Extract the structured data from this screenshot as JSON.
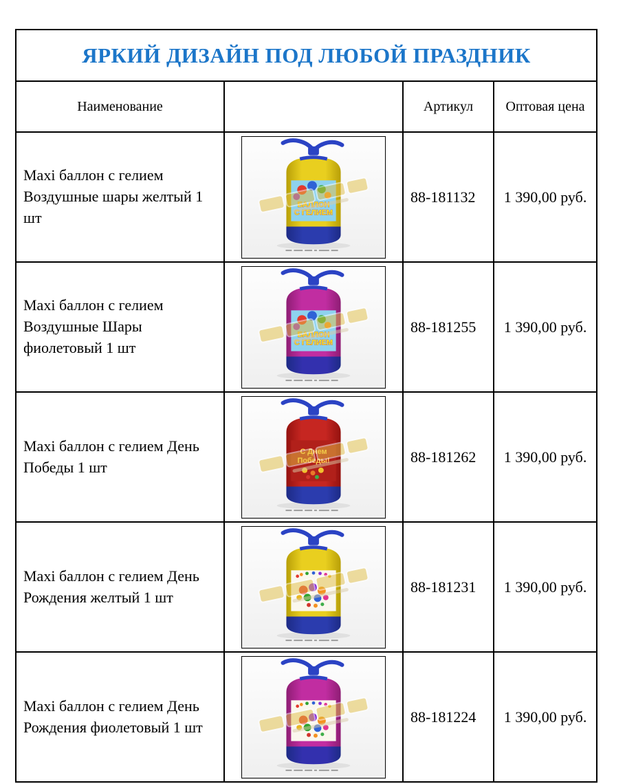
{
  "colors": {
    "title": "#1c76c9",
    "border": "#000000",
    "watermark_gold": "#e2bf45"
  },
  "table": {
    "title": "ЯРКИЙ ДИЗАЙН ПОД ЛЮБОЙ ПРАЗДНИК",
    "headers": {
      "name": "Наименование",
      "image": "",
      "sku": "Артикул",
      "price": "Оптовая цена"
    },
    "products": [
      {
        "name": "Maxi баллон с гелием Воздушные шары желтый 1 шт",
        "sku": "88-181132",
        "price": "1 390,00 руб.",
        "image": {
          "alt": "yellow-helium-tank-balloons-photo",
          "variant": "balloons",
          "body_color": "#e9cf1f",
          "body_edge_color": "#b89f07",
          "bottom_color": "#2b3cae",
          "label_bg": "#8ed2ee",
          "label_lines": [
            "БАЛЛОН",
            "С ГЕЛИЕМ"
          ],
          "label_text_color": "#ffe32a"
        }
      },
      {
        "name": "Maxi баллон с гелием Воздушные Шары фиолетовый 1 шт",
        "sku": "88-181255",
        "price": "1 390,00 руб.",
        "image": {
          "alt": "purple-helium-tank-balloons-photo",
          "variant": "balloons",
          "body_color": "#c12da1",
          "body_edge_color": "#8e1d74",
          "bottom_color": "#3330ae",
          "label_bg": "#8ed2ee",
          "label_lines": [
            "БАЛЛОН",
            "С ГЕЛИЕМ"
          ],
          "label_text_color": "#ffe32a"
        }
      },
      {
        "name": "Maxi баллон с гелием День Победы 1 шт",
        "sku": "88-181262",
        "price": "1 390,00 руб.",
        "image": {
          "alt": "red-helium-tank-victory-day-photo",
          "variant": "victory",
          "body_color": "#c62621",
          "body_edge_color": "#94120f",
          "bottom_color": "#2b3cae",
          "label_bg": "#b1201a",
          "label_lines": [
            "С Днем",
            "Победы!"
          ],
          "label_text_color": "#ffd34d"
        }
      },
      {
        "name": "Maxi баллон с гелием День Рождения желтый 1 шт",
        "sku": "88-181231",
        "price": "1 390,00 руб.",
        "image": {
          "alt": "yellow-helium-tank-birthday-photo",
          "variant": "birthday",
          "body_color": "#e9cf1f",
          "body_edge_color": "#b89f07",
          "bottom_color": "#2b3cae",
          "label_bg": "#faf7ee",
          "label_lines": [],
          "label_text_color": "#d03020"
        }
      },
      {
        "name": "Maxi баллон с гелием День Рождения фиолетовый 1 шт",
        "sku": "88-181224",
        "price": "1 390,00 руб.",
        "image": {
          "alt": "purple-helium-tank-birthday-photo",
          "variant": "birthday",
          "body_color": "#c12da1",
          "body_edge_color": "#8e1d74",
          "bottom_color": "#3330ae",
          "label_bg": "#faf7ee",
          "label_lines": [],
          "label_text_color": "#d03020"
        }
      }
    ]
  }
}
